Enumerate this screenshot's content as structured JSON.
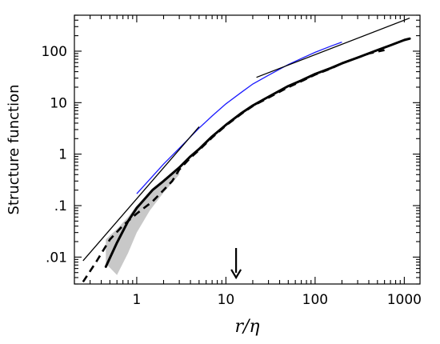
{
  "chart_data": {
    "type": "line",
    "xlabel": "r/η",
    "ylabel": "Structure function",
    "xscale": "log",
    "yscale": "log",
    "xlim": [
      0.2,
      1500
    ],
    "ylim": [
      0.003,
      500
    ],
    "grid": false,
    "x_ticks": [
      {
        "value": 1,
        "label": "1"
      },
      {
        "value": 10,
        "label": "10"
      },
      {
        "value": 100,
        "label": "100"
      },
      {
        "value": 1000,
        "label": "1000"
      }
    ],
    "y_ticks": [
      {
        "value": 0.01,
        "label": ".01"
      },
      {
        "value": 0.1,
        "label": ".1"
      },
      {
        "value": 1,
        "label": "1"
      },
      {
        "value": 10,
        "label": "10"
      },
      {
        "value": 100,
        "label": "100"
      }
    ],
    "colors": {
      "blue_curve": "#1a1aff",
      "black": "#000000",
      "band": "#c8c8c8"
    },
    "shaded_band": {
      "x": [
        0.45,
        0.6,
        0.8,
        1.0,
        1.4,
        2.0,
        2.8,
        3.0
      ],
      "upper": [
        0.022,
        0.035,
        0.06,
        0.1,
        0.17,
        0.3,
        0.5,
        0.55
      ],
      "lower": [
        0.0075,
        0.0045,
        0.012,
        0.03,
        0.08,
        0.18,
        0.35,
        0.4
      ]
    },
    "series": [
      {
        "style": "thin-blue",
        "x": [
          1,
          2,
          3,
          5,
          7,
          10,
          15,
          20,
          30,
          50,
          70,
          100,
          150,
          200
        ],
        "y": [
          0.17,
          0.64,
          1.3,
          3.2,
          5.5,
          9.5,
          16,
          23,
          34,
          55,
          72,
          95,
          125,
          150
        ]
      },
      {
        "style": "thick-solid",
        "x": [
          0.45,
          0.6,
          0.8,
          1.0,
          1.5,
          2.0,
          3.0,
          4.0,
          5.0,
          7.0,
          10,
          15,
          20,
          30,
          50,
          70,
          100,
          150,
          200,
          300,
          500,
          700,
          1000,
          1150
        ],
        "y": [
          0.0065,
          0.019,
          0.05,
          0.09,
          0.2,
          0.3,
          0.55,
          0.9,
          1.25,
          2.2,
          3.7,
          6.3,
          8.8,
          13,
          21,
          27,
          36,
          47,
          58,
          75,
          105,
          130,
          165,
          175
        ]
      },
      {
        "style": "thick-dashed",
        "x": [
          0.25,
          0.35,
          0.5,
          0.7,
          1.0,
          1.5,
          2.0,
          2.5,
          3.0,
          4.0,
          5.0,
          7.0,
          10,
          15,
          20,
          30,
          50,
          70,
          100,
          150,
          200,
          300,
          400,
          600
        ],
        "y": [
          0.0033,
          0.008,
          0.022,
          0.041,
          0.07,
          0.12,
          0.2,
          0.3,
          0.5,
          0.85,
          1.2,
          2.1,
          3.6,
          6.1,
          8.6,
          12.5,
          20,
          26,
          35,
          46,
          58,
          75,
          90,
          105
        ]
      }
    ],
    "reference_lines": [
      {
        "name": "slope-2",
        "x": [
          0.25,
          5
        ],
        "y": [
          0.0085,
          3.4
        ]
      },
      {
        "name": "slope-2/3",
        "x": [
          22,
          1150
        ],
        "y": [
          31,
          440
        ]
      }
    ],
    "arrow_marker": {
      "x": 13,
      "y_top": 0.015,
      "y_bottom": 0.004
    }
  }
}
